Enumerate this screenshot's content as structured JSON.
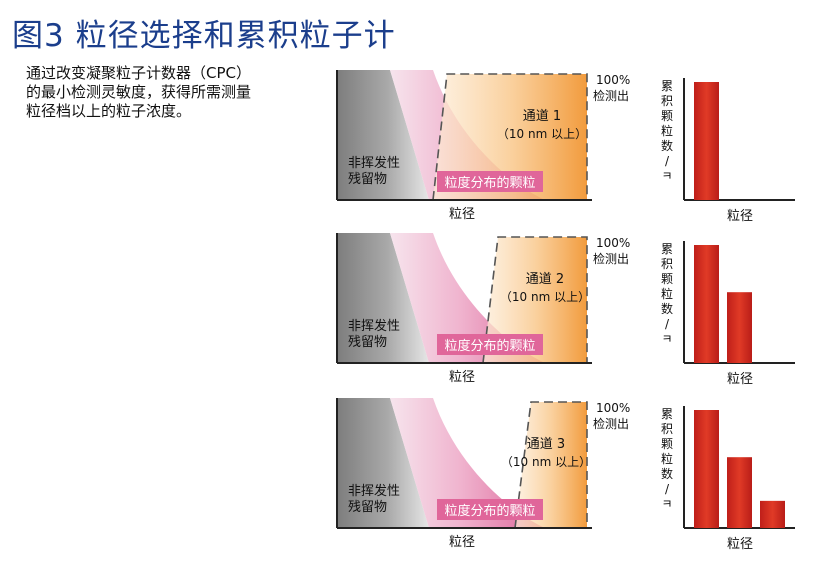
{
  "title": "图3 粒径选择和累积粒子计",
  "description": [
    "通过改变凝聚粒子计数器（CPC）",
    "的最小检测灵敏度，获得所需测量",
    "粒径档以上的粒子浓度。"
  ],
  "colors": {
    "title": "#1b3e8c",
    "bar": "#d42b1e",
    "pink_label_bg": "#e0669a",
    "orange": "#f3a04a"
  },
  "labels": {
    "nonvolatile_line1": "非挥发性",
    "nonvolatile_line2": "残留物",
    "distribution": "粒度分布的颗粒",
    "x_axis": "粒径",
    "pct_line1": "100%",
    "pct_line2": "检测出",
    "size_range": "（10 nm 以上）",
    "bar_y_label": [
      "累",
      "积",
      "颗",
      "粒",
      "数",
      "/",
      "ㅋ"
    ],
    "bar_x_label": "粒径"
  },
  "panels": [
    {
      "channel": "通道 1",
      "bars": [
        1.0
      ]
    },
    {
      "channel": "通道 2",
      "bars": [
        1.0,
        0.6
      ]
    },
    {
      "channel": "通道 3",
      "bars": [
        1.0,
        0.6,
        0.23
      ]
    }
  ]
}
